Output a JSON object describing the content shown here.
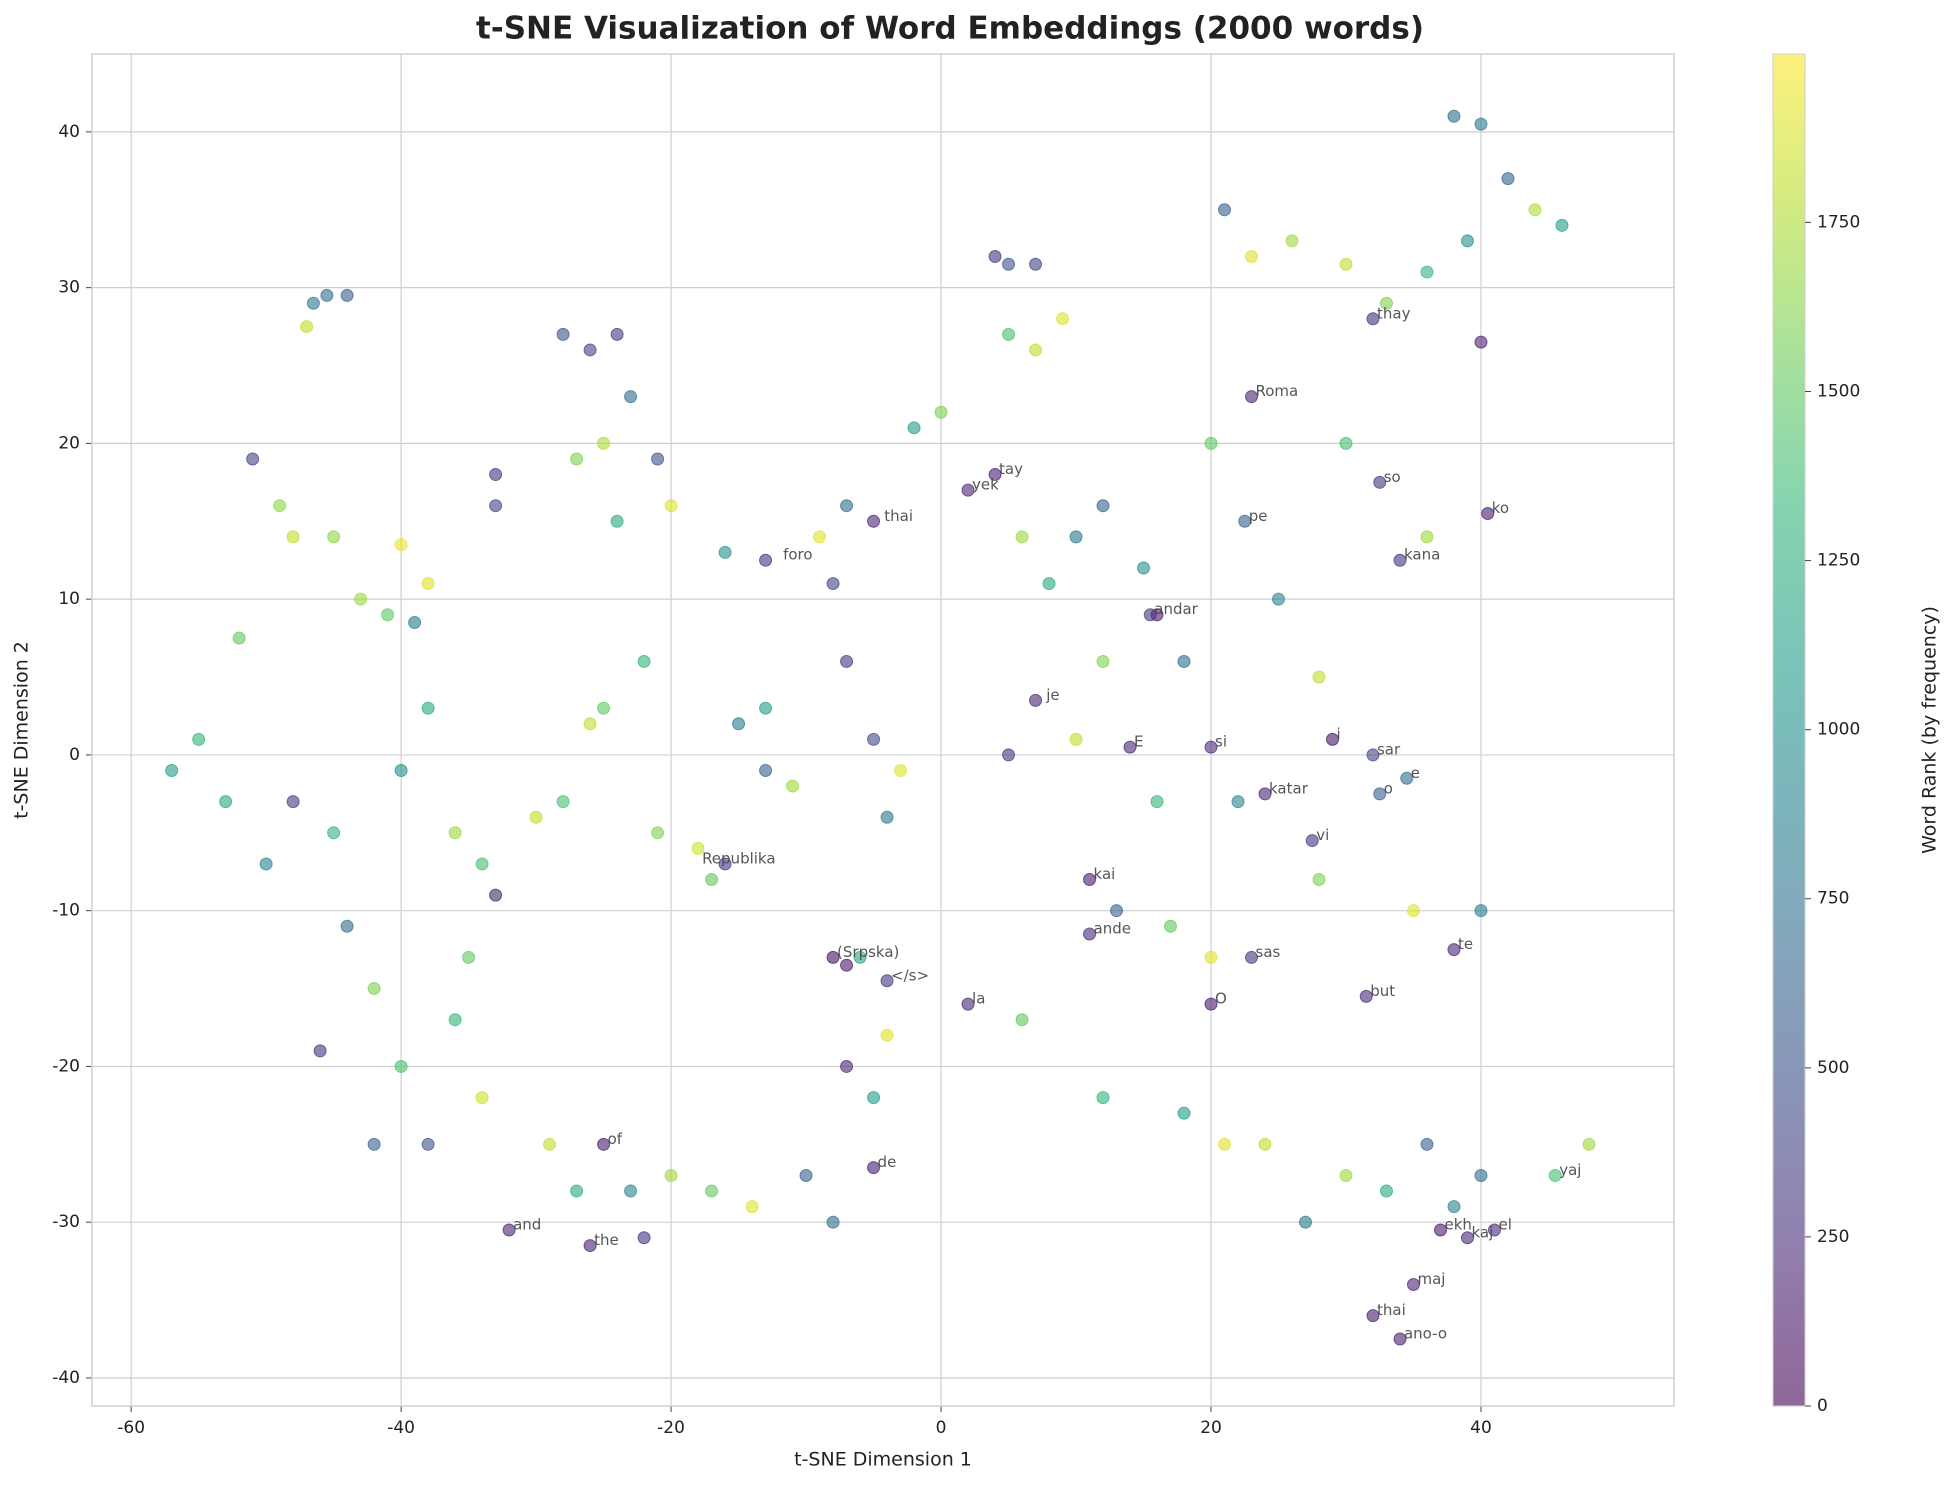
{
  "chart_data": {
    "type": "scatter",
    "title": "t-SNE Visualization of Word Embeddings (2000 words)",
    "x_label": "t-SNE Dimension 1",
    "y_label": "t-SNE Dimension 2",
    "colorbar_label": "Word Rank (by frequency)",
    "colormap": "viridis",
    "xlim": [
      -62.9,
      54.3
    ],
    "ylim": [
      -41.8,
      45.0
    ],
    "clim": [
      0,
      1999
    ],
    "xticks": [
      -60,
      -40,
      -20,
      0,
      20,
      40
    ],
    "yticks": [
      -40,
      -30,
      -20,
      -10,
      0,
      10,
      20,
      30,
      40
    ],
    "cticks": [
      0,
      250,
      500,
      750,
      1000,
      1250,
      1500,
      1750
    ],
    "grid": true,
    "series": [
      {
        "x": [
          -46.5,
          -47,
          -45.5,
          -44,
          -51,
          -49,
          -48,
          -52,
          -55,
          -57,
          -53,
          -50,
          -48,
          -45,
          -44,
          -42,
          -46,
          -40,
          -38,
          -42,
          -41,
          -39,
          -38,
          -40,
          -36,
          -34,
          -33,
          -35,
          -36,
          -34,
          -45,
          -43,
          -38,
          -40,
          -30,
          -28,
          -33,
          -33,
          -28,
          -26,
          -24,
          -23,
          -25,
          -27,
          -21,
          -24,
          -20,
          -22,
          -25,
          -26,
          -21,
          -18,
          -17,
          -16,
          -15,
          -13,
          -13,
          -11,
          -13,
          -16,
          -8,
          -9,
          -7,
          -5,
          -2,
          0,
          -7,
          -5,
          -3,
          -4,
          -8,
          -7,
          -6,
          -4,
          -7,
          -5,
          -4,
          -29,
          -25,
          -27,
          -23,
          -20,
          -17,
          -14,
          -10,
          -8,
          -5,
          -32,
          -26,
          -22,
          4,
          5,
          7,
          5,
          7,
          9,
          2,
          4,
          6,
          8,
          10,
          12,
          15,
          16,
          18,
          12,
          7,
          5,
          10,
          14,
          16,
          20,
          22,
          24,
          11,
          13,
          17,
          11,
          20,
          23,
          2,
          6,
          12,
          20,
          18,
          21,
          24,
          27,
          30,
          33,
          36,
          38,
          40,
          45.5,
          48,
          37,
          39,
          41,
          35,
          32,
          34,
          31.5,
          38,
          35,
          40,
          28,
          27.5,
          29,
          32,
          34.5,
          32.5,
          21,
          23,
          26,
          30,
          33,
          32,
          36,
          39,
          40,
          38,
          42,
          44,
          46,
          40,
          23,
          22.5,
          32.5,
          40.5,
          34,
          36,
          30,
          20,
          25,
          28,
          15.5
        ],
        "values": [
          29,
          27.5,
          29.5,
          29.5,
          19,
          16,
          14,
          7.5,
          1,
          -1,
          -3,
          -7,
          -3,
          -5,
          -11,
          -15,
          -19,
          -20,
          -25,
          -25,
          9,
          8.5,
          3,
          -1,
          -5,
          -7,
          -9,
          -13,
          -17,
          -22,
          14,
          10,
          11,
          13.5,
          -4,
          -3,
          18,
          16,
          27,
          26,
          27,
          23,
          20,
          19,
          19,
          15,
          16,
          6,
          3,
          2,
          -5,
          -6,
          -8,
          -7,
          2,
          3,
          -1,
          -2,
          12.5,
          13,
          11,
          14,
          16,
          15,
          21,
          22,
          6,
          1,
          -1,
          -4,
          -13,
          -13.5,
          -13,
          -14.5,
          -20,
          -22,
          -18,
          -25,
          -25,
          -28,
          -28,
          -27,
          -28,
          -29,
          -27,
          -30,
          -26.5,
          -30.5,
          -31.5,
          -31,
          32,
          31.5,
          31.5,
          27,
          26,
          28,
          17,
          18,
          14,
          11,
          14,
          16,
          12,
          9,
          6,
          6,
          3.5,
          0,
          1,
          0.5,
          -3,
          0.5,
          -3,
          -2.5,
          -8,
          -10,
          -11,
          -11.5,
          -13,
          -13,
          -16,
          -17,
          -22,
          -16,
          -23,
          -25,
          -25,
          -30,
          -27,
          -28,
          -25,
          -29,
          -27,
          -27,
          -25,
          -30.5,
          -31,
          -30.5,
          -34,
          -36,
          -37.5,
          -15.5,
          -12.5,
          -10,
          -10,
          -8,
          -5.5,
          1,
          0,
          -1.5,
          -2.5,
          35,
          32,
          33,
          31.5,
          29,
          28,
          31,
          33,
          40.5,
          41,
          37,
          35,
          34,
          26.5,
          23,
          15,
          17.5,
          15.5,
          12.5,
          14,
          20,
          20,
          10,
          5,
          9
        ],
        "c": [
          800,
          1800,
          700,
          600,
          400,
          1650,
          1800,
          1500,
          1300,
          1100,
          1200,
          900,
          350,
          1300,
          700,
          1600,
          300,
          1400,
          500,
          600,
          1500,
          800,
          1200,
          1000,
          1700,
          1400,
          200,
          1500,
          1300,
          1850,
          1650,
          1700,
          1900,
          1950,
          1800,
          1400,
          300,
          400,
          500,
          400,
          350,
          700,
          1750,
          1600,
          500,
          1200,
          1900,
          1300,
          1500,
          1800,
          1600,
          1850,
          1500,
          300,
          800,
          1100,
          600,
          1700,
          300,
          1000,
          400,
          1900,
          700,
          200,
          1100,
          1600,
          350,
          450,
          1900,
          800,
          100,
          150,
          1200,
          300,
          200,
          1100,
          1900,
          1800,
          150,
          1200,
          900,
          1700,
          1500,
          1900,
          600,
          700,
          150,
          200,
          180,
          300,
          300,
          500,
          400,
          1400,
          1800,
          1900,
          200,
          150,
          1700,
          1200,
          800,
          600,
          1000,
          150,
          700,
          1600,
          200,
          300,
          1800,
          200,
          1300,
          250,
          900,
          200,
          150,
          600,
          1500,
          250,
          1900,
          300,
          200,
          1500,
          1300,
          150,
          1100,
          1900,
          1800,
          800,
          1700,
          1200,
          600,
          900,
          700,
          1400,
          1700,
          150,
          200,
          250,
          200,
          150,
          180,
          250,
          200,
          1900,
          800,
          1600,
          300,
          100,
          400,
          700,
          600,
          600,
          1900,
          1700,
          1800,
          1600,
          250,
          1300,
          1000,
          800,
          700,
          600,
          1750,
          1100,
          200,
          200,
          600,
          300,
          150,
          300,
          1700,
          1400,
          1500,
          900,
          1800,
          300
        ]
      }
    ],
    "annotations": [
      {
        "text": "thay",
        "x": 32,
        "y": 28
      },
      {
        "text": "Roma",
        "x": 23,
        "y": 23
      },
      {
        "text": "so",
        "x": 32.5,
        "y": 17.5
      },
      {
        "text": "ko",
        "x": 40.5,
        "y": 15.5
      },
      {
        "text": "pe",
        "x": 22.5,
        "y": 15
      },
      {
        "text": "kana",
        "x": 34,
        "y": 12.5
      },
      {
        "text": "thai",
        "x": -4.5,
        "y": 15
      },
      {
        "text": "foro",
        "x": -12,
        "y": 12.5
      },
      {
        "text": "yek",
        "x": 2,
        "y": 17
      },
      {
        "text": "tay",
        "x": 4,
        "y": 18
      },
      {
        "text": "andar",
        "x": 15.5,
        "y": 9
      },
      {
        "text": "je",
        "x": 7.5,
        "y": 3.5
      },
      {
        "text": "E",
        "x": 14,
        "y": 0.5
      },
      {
        "text": "si",
        "x": 20,
        "y": 0.5
      },
      {
        "text": "i",
        "x": 29,
        "y": 1
      },
      {
        "text": "sar",
        "x": 32,
        "y": 0
      },
      {
        "text": "e",
        "x": 34.5,
        "y": -1.5
      },
      {
        "text": "o",
        "x": 32.5,
        "y": -2.5
      },
      {
        "text": "katar",
        "x": 24,
        "y": -2.5
      },
      {
        "text": "vi",
        "x": 27.5,
        "y": -5.5
      },
      {
        "text": "Republika",
        "x": -18,
        "y": -7
      },
      {
        "text": "kai",
        "x": 11,
        "y": -8
      },
      {
        "text": "ande",
        "x": 11,
        "y": -11.5
      },
      {
        "text": "sas",
        "x": 23,
        "y": -13
      },
      {
        "text": "te",
        "x": 38,
        "y": -12.5
      },
      {
        "text": "(Srpska)",
        "x": -8,
        "y": -13
      },
      {
        "text": "</s>",
        "x": -4,
        "y": -14.5
      },
      {
        "text": "la",
        "x": 2,
        "y": -16
      },
      {
        "text": "O",
        "x": 20,
        "y": -16
      },
      {
        "text": "but",
        "x": 31.5,
        "y": -15.5
      },
      {
        "text": "of",
        "x": -25,
        "y": -25
      },
      {
        "text": "de",
        "x": -5,
        "y": -26.5
      },
      {
        "text": "yaj",
        "x": 45.5,
        "y": -27
      },
      {
        "text": "and",
        "x": -32,
        "y": -30.5
      },
      {
        "text": "the",
        "x": -26,
        "y": -31.5
      },
      {
        "text": "ekh",
        "x": 37,
        "y": -30.5
      },
      {
        "text": "kaj",
        "x": 39,
        "y": -31
      },
      {
        "text": "el",
        "x": 41,
        "y": -30.5
      },
      {
        "text": "maj",
        "x": 35,
        "y": -34
      },
      {
        "text": "thai",
        "x": 32,
        "y": -36
      },
      {
        "text": "ano-o",
        "x": 34,
        "y": -37.5
      }
    ]
  }
}
